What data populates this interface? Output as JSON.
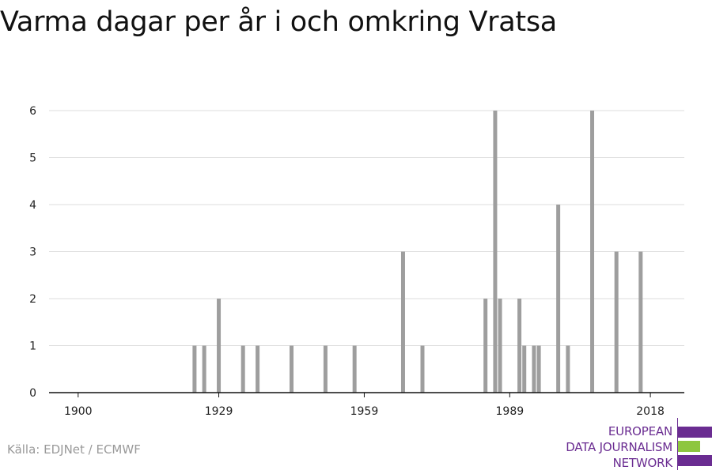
{
  "chart_data": {
    "type": "bar",
    "title": "Varma dagar per år i och omkring Vratsa",
    "xlabel": "",
    "ylabel": "",
    "xlim": [
      1894,
      2025
    ],
    "ylim": [
      0,
      6
    ],
    "x_ticks": [
      1900,
      1929,
      1959,
      1989,
      2018
    ],
    "y_ticks": [
      0,
      1,
      2,
      3,
      4,
      5,
      6
    ],
    "grid": true,
    "bar_color": "#9e9e9e",
    "series": [
      {
        "x": [
          1924,
          1926,
          1929,
          1934,
          1937,
          1944,
          1951,
          1957,
          1967,
          1971,
          1984,
          1986,
          1987,
          1991,
          1992,
          1994,
          1995,
          1999,
          2001,
          2006,
          2011,
          2016
        ],
        "values": [
          1,
          1,
          2,
          1,
          1,
          1,
          1,
          1,
          3,
          1,
          2,
          6,
          2,
          2,
          1,
          1,
          1,
          4,
          1,
          6,
          3,
          3
        ]
      }
    ]
  },
  "source": "Källa: EDJNet / ECMWF",
  "logo": {
    "lines": [
      "EUROPEAN",
      "DATA JOURNALISM",
      "NETWORK"
    ],
    "color_purple": "#6a2c91",
    "color_green": "#8dc63f"
  }
}
